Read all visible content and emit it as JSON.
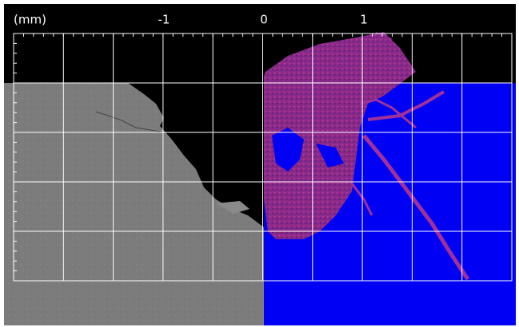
{
  "scale": {
    "unit": "(mm)",
    "ticks": [
      -1,
      0,
      1
    ]
  }
}
